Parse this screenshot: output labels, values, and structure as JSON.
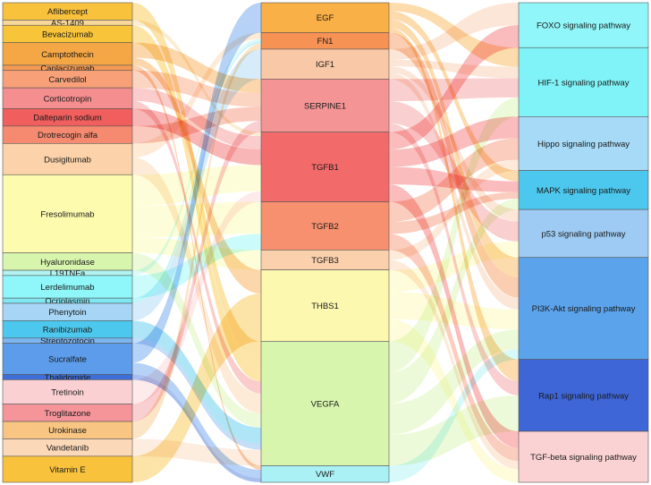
{
  "chart_data": {
    "type": "sankey",
    "columns": [
      {
        "name": "",
        "nodes": [
          {
            "id": "d1",
            "label": "Aflibercept",
            "color": "#F9C23C"
          },
          {
            "id": "d2",
            "label": "AS-1409",
            "color": "#F7D79A"
          },
          {
            "id": "d3",
            "label": "Bevacizumab",
            "color": "#F8C53A"
          },
          {
            "id": "d4",
            "label": "Camptothecin",
            "color": "#F6A745"
          },
          {
            "id": "d5",
            "label": "Caplacizumab",
            "color": "#F59A55"
          },
          {
            "id": "d6",
            "label": "Carvedilol",
            "color": "#F8A178"
          },
          {
            "id": "d7",
            "label": "Corticotropin",
            "color": "#F58E8E"
          },
          {
            "id": "d8",
            "label": "Dalteparin sodium",
            "color": "#F05E5E"
          },
          {
            "id": "d9",
            "label": "Drotrecogin alfa",
            "color": "#F58A70"
          },
          {
            "id": "d10",
            "label": "Dusigitumab",
            "color": "#FBD2A9"
          },
          {
            "id": "d11",
            "label": "Fresolimumab",
            "color": "#FCFBAE"
          },
          {
            "id": "d12",
            "label": "Hyaluronidase",
            "color": "#D8F5AE"
          },
          {
            "id": "d13",
            "label": "L19TNFa",
            "color": "#B0F3F0"
          },
          {
            "id": "d14",
            "label": "Lerdelimumab",
            "color": "#8FF6F9"
          },
          {
            "id": "d15",
            "label": "Ocriplasmin",
            "color": "#7FE6F2"
          },
          {
            "id": "d16",
            "label": "Phenytoin",
            "color": "#A6D5F5"
          },
          {
            "id": "d17",
            "label": "Ranibizumab",
            "color": "#4CC8EE"
          },
          {
            "id": "d18",
            "label": "Streptozotocin",
            "color": "#7CB5F0"
          },
          {
            "id": "d19",
            "label": "Sucralfate",
            "color": "#5D9CEB"
          },
          {
            "id": "d20",
            "label": "Thalidomide",
            "color": "#3E6FD8"
          },
          {
            "id": "d21",
            "label": "Tretinoin",
            "color": "#FAD0D2"
          },
          {
            "id": "d22",
            "label": "Troglitazone",
            "color": "#F5959A"
          },
          {
            "id": "d23",
            "label": "Urokinase",
            "color": "#F9C582"
          },
          {
            "id": "d24",
            "label": "Vandetanib",
            "color": "#FBD8B8"
          },
          {
            "id": "d25",
            "label": "Vitamin E",
            "color": "#F9C23C"
          }
        ]
      },
      {
        "name": "",
        "nodes": [
          {
            "id": "g1",
            "label": "EGF",
            "color": "#F9B046"
          },
          {
            "id": "g2",
            "label": "FN1",
            "color": "#F79255"
          },
          {
            "id": "g3",
            "label": "IGF1",
            "color": "#F9C8A6"
          },
          {
            "id": "g4",
            "label": "SERPINE1",
            "color": "#F59495"
          },
          {
            "id": "g5",
            "label": "TGFB1",
            "color": "#F36A6A"
          },
          {
            "id": "g6",
            "label": "TGFB2",
            "color": "#F6906E"
          },
          {
            "id": "g7",
            "label": "TGFB3",
            "color": "#FBD0AC"
          },
          {
            "id": "g8",
            "label": "THBS1",
            "color": "#FCF8AF"
          },
          {
            "id": "g9",
            "label": "VEGFA",
            "color": "#D8F5AE"
          },
          {
            "id": "g10",
            "label": "VWF",
            "color": "#A9F1F5"
          }
        ]
      },
      {
        "name": "",
        "nodes": [
          {
            "id": "p1",
            "label": "FOXO signaling pathway",
            "color": "#90F6F9"
          },
          {
            "id": "p2",
            "label": "HIF-1 signaling pathway",
            "color": "#7FF3F7"
          },
          {
            "id": "p3",
            "label": "Hippo signaling pathway",
            "color": "#A6DAF6"
          },
          {
            "id": "p4",
            "label": "MAPK signaling pathway",
            "color": "#4CC8EE"
          },
          {
            "id": "p5",
            "label": "p53 signaling pathway",
            "color": "#9ECBF3"
          },
          {
            "id": "p6",
            "label": "PI3K-Akt signaling pathway",
            "color": "#5BA4EC"
          },
          {
            "id": "p7",
            "label": "Rap1 signaling pathway",
            "color": "#3E66D6"
          },
          {
            "id": "p8",
            "label": "TGF-beta signaling pathway",
            "color": "#FBD2D3"
          }
        ]
      }
    ],
    "links": [
      {
        "source": "d1",
        "target": "g9",
        "value": 1
      },
      {
        "source": "d2",
        "target": "g5",
        "value": 0.3
      },
      {
        "source": "d3",
        "target": "g9",
        "value": 1
      },
      {
        "source": "d4",
        "target": "g4",
        "value": 1
      },
      {
        "source": "d4",
        "target": "g8",
        "value": 0.5
      },
      {
        "source": "d5",
        "target": "g10",
        "value": 0.3
      },
      {
        "source": "d6",
        "target": "g4",
        "value": 1
      },
      {
        "source": "d7",
        "target": "g5",
        "value": 1
      },
      {
        "source": "d7",
        "target": "g9",
        "value": 0.6
      },
      {
        "source": "d8",
        "target": "g5",
        "value": 1.2
      },
      {
        "source": "d9",
        "target": "g4",
        "value": 1
      },
      {
        "source": "d10",
        "target": "g2",
        "value": 0.8
      },
      {
        "source": "d10",
        "target": "g9",
        "value": 1
      },
      {
        "source": "d11",
        "target": "g5",
        "value": 2
      },
      {
        "source": "d11",
        "target": "g6",
        "value": 2
      },
      {
        "source": "d11",
        "target": "g7",
        "value": 1
      },
      {
        "source": "d12",
        "target": "g9",
        "value": 0.7
      },
      {
        "source": "d13",
        "target": "g2",
        "value": 0.3
      },
      {
        "source": "d14",
        "target": "g6",
        "value": 1
      },
      {
        "source": "d15",
        "target": "g2",
        "value": 0.3
      },
      {
        "source": "d16",
        "target": "g3",
        "value": 0.8
      },
      {
        "source": "d17",
        "target": "g9",
        "value": 0.8
      },
      {
        "source": "d18",
        "target": "g9",
        "value": 0.3
      },
      {
        "source": "d19",
        "target": "g1",
        "value": 1
      },
      {
        "source": "d19",
        "target": "g10",
        "value": 0.6
      },
      {
        "source": "d20",
        "target": "g10",
        "value": 0.3
      },
      {
        "source": "d21",
        "target": "g5",
        "value": 0.8
      },
      {
        "source": "d22",
        "target": "g4",
        "value": 0.8
      },
      {
        "source": "d23",
        "target": "g2",
        "value": 0.7
      },
      {
        "source": "d24",
        "target": "g9",
        "value": 0.8
      },
      {
        "source": "d25",
        "target": "g8",
        "value": 1
      },
      {
        "source": "g1",
        "target": "p2",
        "value": 1
      },
      {
        "source": "g1",
        "target": "p4",
        "value": 1
      },
      {
        "source": "g1",
        "target": "p6",
        "value": 1
      },
      {
        "source": "g1",
        "target": "p7",
        "value": 0.6
      },
      {
        "source": "g2",
        "target": "p6",
        "value": 1
      },
      {
        "source": "g3",
        "target": "p1",
        "value": 1
      },
      {
        "source": "g3",
        "target": "p2",
        "value": 0.6
      },
      {
        "source": "g3",
        "target": "p5",
        "value": 0.6
      },
      {
        "source": "g3",
        "target": "p6",
        "value": 0.6
      },
      {
        "source": "g4",
        "target": "p2",
        "value": 1
      },
      {
        "source": "g4",
        "target": "p5",
        "value": 1
      },
      {
        "source": "g4",
        "target": "p7",
        "value": 0.4
      },
      {
        "source": "g5",
        "target": "p1",
        "value": 1
      },
      {
        "source": "g5",
        "target": "p3",
        "value": 1
      },
      {
        "source": "g5",
        "target": "p4",
        "value": 1
      },
      {
        "source": "g5",
        "target": "p8",
        "value": 1
      },
      {
        "source": "g6",
        "target": "p3",
        "value": 1
      },
      {
        "source": "g6",
        "target": "p4",
        "value": 0.6
      },
      {
        "source": "g6",
        "target": "p8",
        "value": 0.8
      },
      {
        "source": "g7",
        "target": "p3",
        "value": 0.5
      },
      {
        "source": "g7",
        "target": "p8",
        "value": 0.5
      },
      {
        "source": "g8",
        "target": "p5",
        "value": 0.8
      },
      {
        "source": "g8",
        "target": "p6",
        "value": 1
      },
      {
        "source": "g8",
        "target": "p8",
        "value": 0.8
      },
      {
        "source": "g9",
        "target": "p2",
        "value": 1
      },
      {
        "source": "g9",
        "target": "p4",
        "value": 1
      },
      {
        "source": "g9",
        "target": "p6",
        "value": 1
      },
      {
        "source": "g9",
        "target": "p7",
        "value": 1
      },
      {
        "source": "g10",
        "target": "p6",
        "value": 0.5
      }
    ],
    "column_node_heights": [
      [
        1,
        0.3,
        1,
        1.3,
        0.3,
        1,
        1.2,
        1,
        1,
        1.8,
        4.5,
        1,
        0.3,
        1.3,
        0.3,
        1,
        1,
        0.3,
        1.8,
        0.3,
        1.4,
        1,
        1,
        1,
        1.5
      ],
      [
        1.8,
        1,
        1.8,
        3.2,
        4.2,
        2.9,
        1.2,
        4.3,
        7.5,
        1
      ],
      [
        1.5,
        2.3,
        1.8,
        1.3,
        1.6,
        3.4,
        2.4,
        1.7
      ]
    ]
  }
}
